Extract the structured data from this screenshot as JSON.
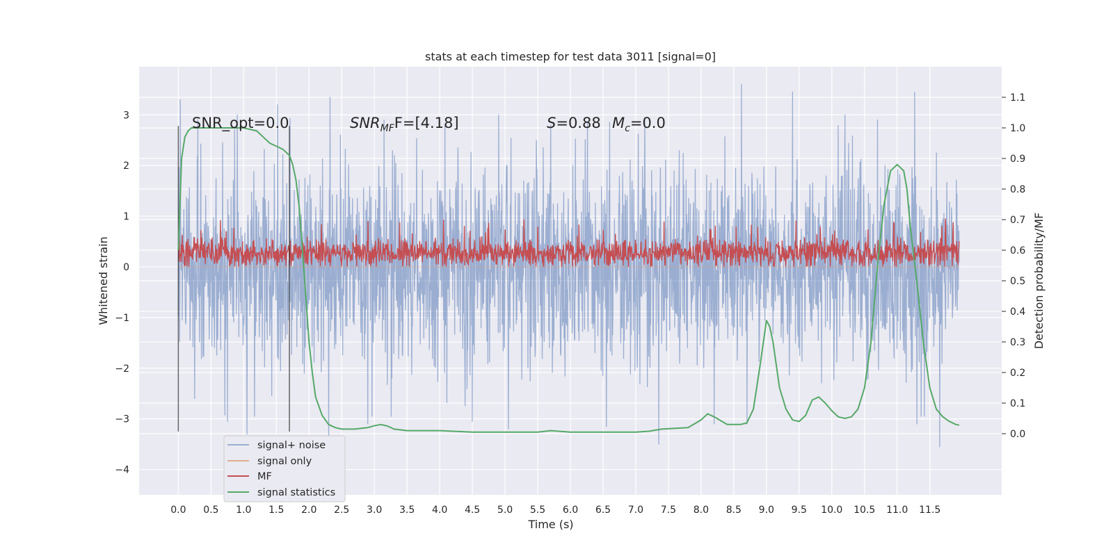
{
  "chart_data": {
    "type": "line",
    "title": "stats at each timestep for test data 3011 [signal=0]",
    "xlabel": "Time (s)",
    "ylabel": "Whitened strain",
    "ylabel_right": "Detection probability/MF",
    "xlim": [
      -0.6,
      12.6
    ],
    "ylim": [
      -4.5,
      3.95
    ],
    "ylim_right": [
      -0.2,
      1.2
    ],
    "x_ticks": [
      "0.0",
      "0.5",
      "1.0",
      "1.5",
      "2.0",
      "2.5",
      "3.0",
      "3.5",
      "4.0",
      "4.5",
      "5.0",
      "5.5",
      "6.0",
      "6.5",
      "7.0",
      "7.5",
      "8.0",
      "8.5",
      "9.0",
      "9.5",
      "10.0",
      "10.5",
      "11.0",
      "11.5"
    ],
    "y_ticks": [
      "3",
      "2",
      "1",
      "0",
      "−1",
      "−2",
      "−3",
      "−4"
    ],
    "y_ticks_right": [
      "1.1",
      "1.0",
      "0.9",
      "0.8",
      "0.7",
      "0.6",
      "0.5",
      "0.4",
      "0.3",
      "0.2",
      "0.1",
      "0.0"
    ],
    "grid": true,
    "legend_position": "lower-left",
    "annotations": {
      "snr_opt": "SNR_opt=0.0",
      "snr_mf_base": "SNR",
      "snr_mf_sub": "MF",
      "snr_mf_tail": "F=[4.18]",
      "s_base": "S",
      "s_tail": "=0.88",
      "mc_base": "M",
      "mc_sub": "c",
      "mc_tail": "=0.0"
    },
    "vlines": [
      0.0,
      1.7
    ],
    "series": [
      {
        "name": "signal+ noise",
        "color": "#4c72b0",
        "axis": "left",
        "description_values": {
          "x_start": 0.0,
          "x_end": 11.95,
          "typical_range": [
            -1.5,
            1.55
          ],
          "max": 3.6,
          "min": -3.55
        },
        "peaks": [
          [
            0.03,
            3.3
          ],
          [
            0.3,
            2.9
          ],
          [
            0.9,
            3.0
          ],
          [
            1.52,
            3.2
          ],
          [
            2.32,
            3.35
          ],
          [
            3.15,
            2.9
          ],
          [
            4.9,
            3.0
          ],
          [
            5.7,
            2.8
          ],
          [
            6.6,
            2.85
          ],
          [
            8.62,
            3.6
          ],
          [
            9.4,
            3.45
          ],
          [
            10.2,
            3.0
          ],
          [
            10.7,
            2.9
          ],
          [
            11.27,
            3.45
          ]
        ],
        "troughs": [
          [
            0.25,
            -2.6
          ],
          [
            0.75,
            -3.05
          ],
          [
            1.05,
            -3.3
          ],
          [
            2.3,
            -3.6
          ],
          [
            2.9,
            -3.1
          ],
          [
            4.5,
            -3.05
          ],
          [
            5.05,
            -3.2
          ],
          [
            6.55,
            -3.15
          ],
          [
            7.35,
            -3.5
          ],
          [
            8.2,
            -3.1
          ],
          [
            8.7,
            -3.1
          ],
          [
            11.3,
            -3.1
          ],
          [
            11.65,
            -3.55
          ]
        ]
      },
      {
        "name": "signal only",
        "color": "#dd8452",
        "axis": "left",
        "values_constant": 0.0
      },
      {
        "name": "MF",
        "color": "#c44e52",
        "axis": "left",
        "description_values": {
          "x_start": 0.0,
          "x_end": 11.95,
          "typical_range": [
            0.02,
            0.7
          ],
          "max": 0.95
        }
      },
      {
        "name": "signal statistics",
        "color": "#55a868",
        "axis": "right",
        "x": [
          0.0,
          0.05,
          0.1,
          0.15,
          0.2,
          0.3,
          0.4,
          0.6,
          0.8,
          1.0,
          1.2,
          1.3,
          1.4,
          1.5,
          1.6,
          1.7,
          1.75,
          1.8,
          1.85,
          1.9,
          1.95,
          2.0,
          2.05,
          2.1,
          2.2,
          2.3,
          2.4,
          2.5,
          2.7,
          2.9,
          3.0,
          3.1,
          3.2,
          3.3,
          3.5,
          4.0,
          4.5,
          5.0,
          5.5,
          5.7,
          6.0,
          6.5,
          7.0,
          7.2,
          7.4,
          7.8,
          8.0,
          8.1,
          8.2,
          8.4,
          8.6,
          8.7,
          8.8,
          8.9,
          9.0,
          9.05,
          9.1,
          9.2,
          9.3,
          9.4,
          9.5,
          9.6,
          9.7,
          9.8,
          9.9,
          10.0,
          10.1,
          10.2,
          10.3,
          10.4,
          10.5,
          10.6,
          10.7,
          10.8,
          10.9,
          11.0,
          11.1,
          11.15,
          11.2,
          11.3,
          11.4,
          11.5,
          11.6,
          11.7,
          11.8,
          11.9,
          11.95
        ],
        "values": [
          0.6,
          0.9,
          0.97,
          0.99,
          1.0,
          1.0,
          1.0,
          1.0,
          1.0,
          1.0,
          0.99,
          0.97,
          0.95,
          0.94,
          0.93,
          0.91,
          0.88,
          0.83,
          0.74,
          0.6,
          0.45,
          0.3,
          0.2,
          0.12,
          0.06,
          0.03,
          0.02,
          0.015,
          0.015,
          0.02,
          0.026,
          0.03,
          0.025,
          0.015,
          0.01,
          0.01,
          0.005,
          0.005,
          0.005,
          0.01,
          0.005,
          0.005,
          0.005,
          0.008,
          0.015,
          0.02,
          0.045,
          0.065,
          0.055,
          0.03,
          0.03,
          0.035,
          0.08,
          0.22,
          0.37,
          0.35,
          0.3,
          0.15,
          0.08,
          0.045,
          0.04,
          0.06,
          0.11,
          0.12,
          0.1,
          0.075,
          0.055,
          0.05,
          0.055,
          0.08,
          0.15,
          0.3,
          0.55,
          0.75,
          0.86,
          0.88,
          0.86,
          0.8,
          0.68,
          0.5,
          0.3,
          0.15,
          0.08,
          0.055,
          0.04,
          0.03,
          0.028
        ]
      }
    ]
  }
}
